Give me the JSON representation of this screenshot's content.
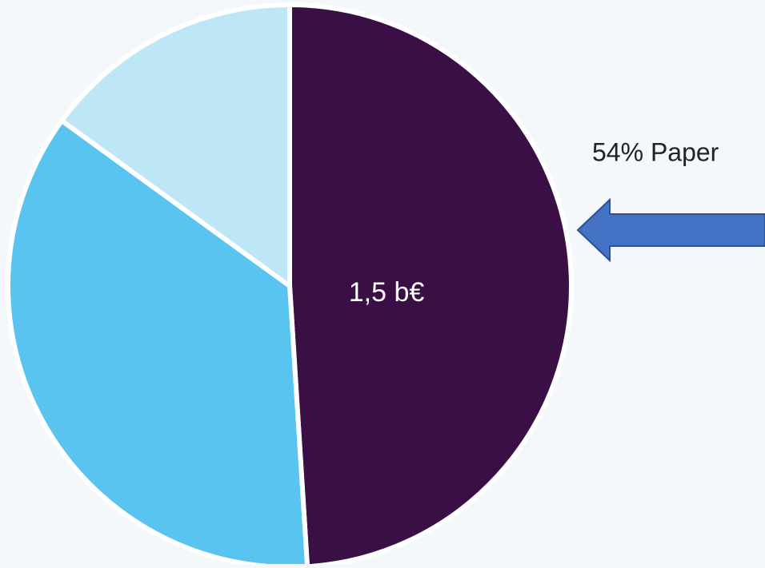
{
  "chart_data": {
    "type": "pie",
    "categories": [
      null,
      null,
      null
    ],
    "values": [
      49,
      36,
      15
    ],
    "colors": [
      "#3a0f45",
      "#5ac4f0",
      "#bde6f7"
    ],
    "annotations": [
      "1,5 b€",
      "54% Paper"
    ]
  }
}
